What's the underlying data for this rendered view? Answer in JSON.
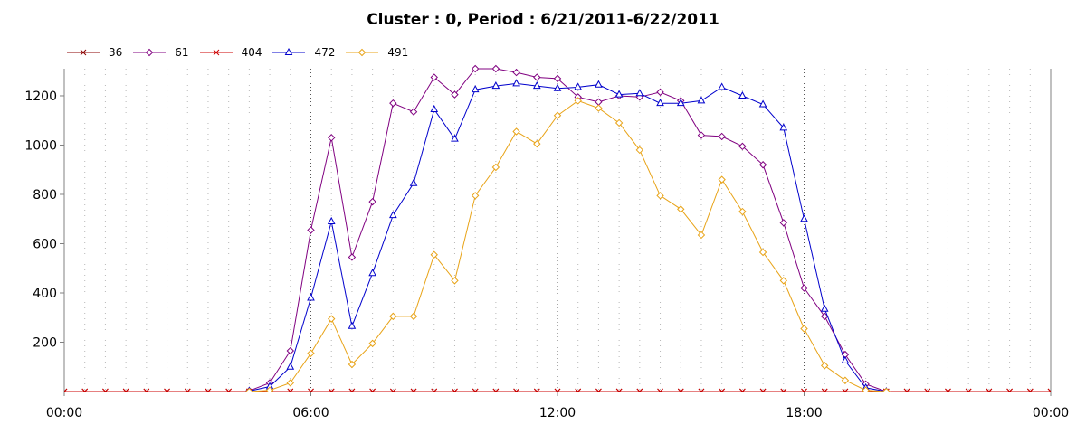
{
  "chart_data": {
    "type": "line",
    "title": "Cluster : 0, Period : 6/21/2011-6/22/2011",
    "xlabel": "",
    "ylabel": "",
    "x_tick_labels": [
      "00:00",
      "06:00",
      "12:00",
      "18:00",
      "00:00"
    ],
    "y_ticks": [
      200,
      400,
      600,
      800,
      1000,
      1200
    ],
    "xlim": [
      0,
      24
    ],
    "ylim": [
      0,
      1310
    ],
    "grid": true,
    "legend_position": "top-left",
    "series": [
      {
        "name": "36",
        "color": "#8b0000",
        "marker": "x",
        "x": [
          0,
          0.5,
          1,
          1.5,
          2,
          2.5,
          3,
          3.5,
          4,
          4.5,
          5,
          5.5,
          6,
          6.5,
          7,
          7.5,
          8,
          8.5,
          9,
          9.5,
          10,
          10.5,
          11,
          11.5,
          12,
          12.5,
          13,
          13.5,
          14,
          14.5,
          15,
          15.5,
          16,
          16.5,
          17,
          17.5,
          18,
          18.5,
          19,
          19.5,
          20,
          20.5,
          21,
          21.5,
          22,
          22.5,
          23,
          23.5,
          24
        ],
        "y": [
          0,
          0,
          0,
          0,
          0,
          0,
          0,
          0,
          0,
          0,
          0,
          0,
          0,
          0,
          0,
          0,
          0,
          0,
          0,
          0,
          0,
          0,
          0,
          0,
          0,
          0,
          0,
          0,
          0,
          0,
          0,
          0,
          0,
          0,
          0,
          0,
          0,
          0,
          0,
          0,
          0,
          0,
          0,
          0,
          0,
          0,
          0,
          0,
          0
        ]
      },
      {
        "name": "61",
        "color": "#800080",
        "marker": "diamond",
        "x": [
          4.5,
          5,
          5.5,
          6,
          6.5,
          7,
          7.5,
          8,
          8.5,
          9,
          9.5,
          10,
          10.5,
          11,
          11.5,
          12,
          12.5,
          13,
          13.5,
          14,
          14.5,
          15,
          15.5,
          16,
          16.5,
          17,
          17.5,
          18,
          18.5,
          19,
          19.5,
          20
        ],
        "y": [
          3,
          35,
          165,
          655,
          1030,
          545,
          770,
          1170,
          1135,
          1275,
          1205,
          1310,
          1310,
          1295,
          1275,
          1270,
          1195,
          1175,
          1200,
          1195,
          1215,
          1180,
          1040,
          1035,
          995,
          920,
          685,
          420,
          305,
          150,
          30,
          0
        ]
      },
      {
        "name": "404",
        "color": "#cc0000",
        "marker": "x",
        "x": [
          0,
          0.5,
          1,
          1.5,
          2,
          2.5,
          3,
          3.5,
          4,
          4.5,
          5,
          5.5,
          6,
          6.5,
          7,
          7.5,
          8,
          8.5,
          9,
          9.5,
          10,
          10.5,
          11,
          11.5,
          12,
          12.5,
          13,
          13.5,
          14,
          14.5,
          15,
          15.5,
          16,
          16.5,
          17,
          17.5,
          18,
          18.5,
          19,
          19.5,
          20,
          20.5,
          21,
          21.5,
          22,
          22.5,
          23,
          23.5,
          24
        ],
        "y": [
          0,
          0,
          0,
          0,
          0,
          0,
          0,
          0,
          0,
          0,
          0,
          0,
          0,
          0,
          0,
          0,
          0,
          0,
          0,
          0,
          0,
          0,
          0,
          0,
          0,
          0,
          0,
          0,
          0,
          0,
          0,
          0,
          0,
          0,
          0,
          0,
          0,
          0,
          0,
          0,
          0,
          0,
          0,
          0,
          0,
          0,
          0,
          0,
          0
        ]
      },
      {
        "name": "472",
        "color": "#0000cc",
        "marker": "triangle",
        "x": [
          4.5,
          5,
          5.5,
          6,
          6.5,
          7,
          7.5,
          8,
          8.5,
          9,
          9.5,
          10,
          10.5,
          11,
          11.5,
          12,
          12.5,
          13,
          13.5,
          14,
          14.5,
          15,
          15.5,
          16,
          16.5,
          17,
          17.5,
          18,
          18.5,
          19,
          19.5,
          20
        ],
        "y": [
          2,
          20,
          100,
          380,
          690,
          265,
          480,
          715,
          845,
          1145,
          1025,
          1225,
          1240,
          1250,
          1240,
          1230,
          1235,
          1245,
          1205,
          1210,
          1170,
          1170,
          1180,
          1235,
          1200,
          1165,
          1070,
          700,
          335,
          125,
          15,
          0
        ]
      },
      {
        "name": "491",
        "color": "#e8a317",
        "marker": "diamond",
        "x": [
          4.5,
          5,
          5.5,
          6,
          6.5,
          7,
          7.5,
          8,
          8.5,
          9,
          9.5,
          10,
          10.5,
          11,
          11.5,
          12,
          12.5,
          13,
          13.5,
          14,
          14.5,
          15,
          15.5,
          16,
          16.5,
          17,
          17.5,
          18,
          18.5,
          19,
          19.5,
          20
        ],
        "y": [
          0,
          5,
          35,
          155,
          295,
          110,
          195,
          305,
          305,
          555,
          450,
          795,
          910,
          1055,
          1005,
          1120,
          1180,
          1150,
          1090,
          980,
          795,
          740,
          635,
          860,
          730,
          565,
          450,
          255,
          105,
          45,
          5,
          0
        ]
      }
    ]
  }
}
